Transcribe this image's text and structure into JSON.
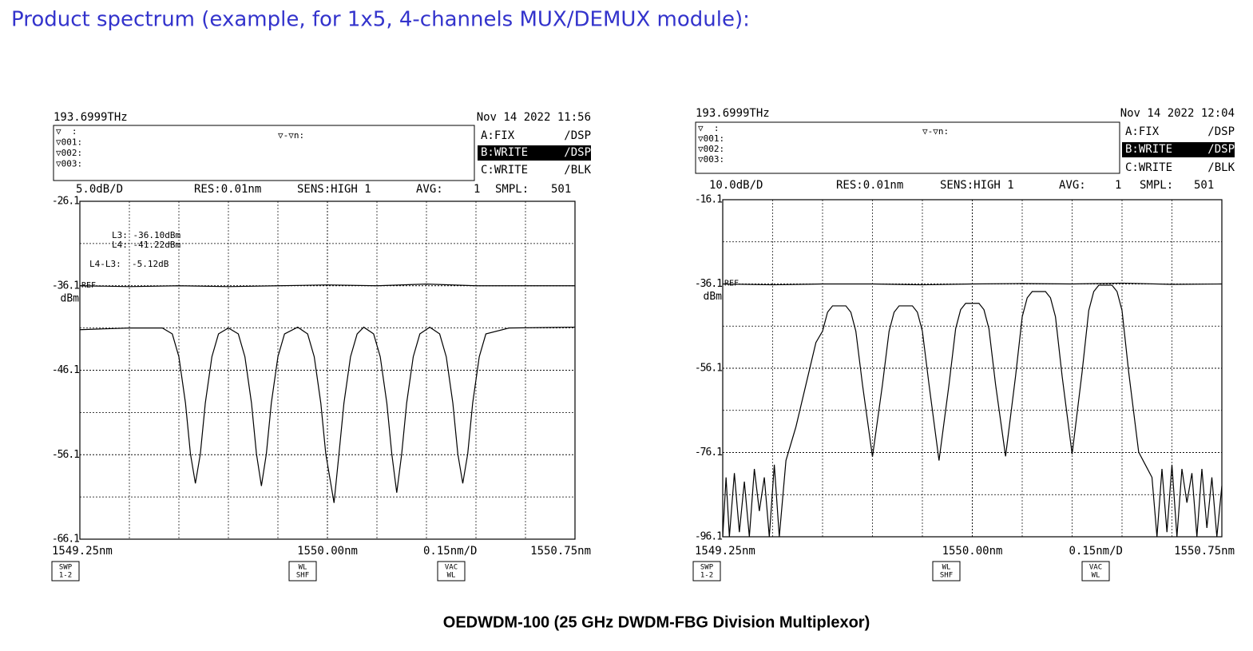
{
  "page_title": "Product spectrum (example, for 1x5, 4-channels MUX/DEMUX module):",
  "caption": "OEDWDM-100 (25 GHz DWDM-FBG Division Multiplexor)",
  "chart_data": [
    {
      "type": "line",
      "frequency": "193.6999THz",
      "timestamp": "Nov 14 2022 11:56",
      "marker_labels": [
        "▽  :",
        "▽001:",
        "▽002:",
        "▽003:"
      ],
      "delta_label": "▽-▽n:",
      "trace_modes": [
        [
          "A:FIX",
          "/DSP"
        ],
        [
          "B:WRITE",
          "/DSP"
        ],
        [
          "C:WRITE",
          "/BLK"
        ]
      ],
      "settings": [
        "5.0dB/D",
        "RES:0.01nm",
        "SENS:HIGH 1",
        "AVG:",
        "1",
        "SMPL:",
        "501"
      ],
      "y_unit": "dBm",
      "ref_label": "REF",
      "x_per_div": "0.15nm/D",
      "buttons": [
        [
          "SWP",
          "1-2"
        ],
        [
          "WL",
          "SHF"
        ],
        [
          "VAC",
          "WL"
        ]
      ],
      "annotations": [
        "L3: -36.10dBm",
        "L4: -41.22dBm",
        "L4-L3:  -5.12dB"
      ],
      "xlim": [
        1549.25,
        1550.75
      ],
      "xticks": [
        {
          "value": 1549.25,
          "label": "1549.25nm"
        },
        {
          "value": 1550.0,
          "label": "1550.00nm"
        },
        {
          "value": 1550.75,
          "label": "1550.75nm"
        }
      ],
      "ylim": [
        -66.1,
        -26.1
      ],
      "yticks": [
        -26.1,
        -36.1,
        -46.1,
        -56.1,
        -66.1
      ],
      "series": [
        {
          "color": "#000000",
          "x": [
            1549.25,
            1549.4,
            1549.55,
            1549.7,
            1549.85,
            1550.0,
            1550.15,
            1550.3,
            1550.45,
            1550.6,
            1550.75
          ],
          "values": [
            -36.1,
            -36.2,
            -36.1,
            -36.2,
            -36.1,
            -36.0,
            -36.1,
            -35.9,
            -36.1,
            -36.1,
            -36.1
          ]
        },
        {
          "color": "#000000",
          "x": [
            1549.25,
            1549.4,
            1549.5,
            1549.53,
            1549.55,
            1549.57,
            1549.585,
            1549.6,
            1549.615,
            1549.63,
            1549.65,
            1549.67,
            1549.7,
            1549.73,
            1549.75,
            1549.77,
            1549.785,
            1549.8,
            1549.815,
            1549.83,
            1549.85,
            1549.87,
            1549.91,
            1549.94,
            1549.96,
            1549.98,
            1549.995,
            1550.02,
            1550.035,
            1550.05,
            1550.07,
            1550.09,
            1550.11,
            1550.14,
            1550.16,
            1550.18,
            1550.195,
            1550.21,
            1550.225,
            1550.24,
            1550.26,
            1550.28,
            1550.31,
            1550.34,
            1550.36,
            1550.38,
            1550.395,
            1550.41,
            1550.425,
            1550.44,
            1550.46,
            1550.48,
            1550.55,
            1550.75
          ],
          "values": [
            -41.3,
            -41.1,
            -41.1,
            -41.8,
            -44.5,
            -50,
            -56,
            -59.5,
            -56,
            -50,
            -44.5,
            -41.8,
            -41.1,
            -41.8,
            -44.5,
            -50,
            -56,
            -59.8,
            -56,
            -50,
            -44.5,
            -41.8,
            -41.0,
            -41.8,
            -44.5,
            -50,
            -56,
            -61.8,
            -56,
            -50,
            -44.5,
            -41.8,
            -41.0,
            -41.8,
            -44.5,
            -50,
            -56,
            -60.6,
            -56,
            -50,
            -44.5,
            -41.8,
            -41.0,
            -41.8,
            -44.5,
            -50,
            -56,
            -59.5,
            -56,
            -50,
            -44.5,
            -41.8,
            -41.1,
            -41.0
          ]
        }
      ]
    },
    {
      "type": "line",
      "frequency": "193.6999THz",
      "timestamp": "Nov 14 2022 12:04",
      "marker_labels": [
        "▽  :",
        "▽001:",
        "▽002:",
        "▽003:"
      ],
      "delta_label": "▽-▽n:",
      "trace_modes": [
        [
          "A:FIX",
          "/DSP"
        ],
        [
          "B:WRITE",
          "/DSP"
        ],
        [
          "C:WRITE",
          "/BLK"
        ]
      ],
      "settings": [
        "10.0dB/D",
        "RES:0.01nm",
        "SENS:HIGH 1",
        "AVG:",
        "1",
        "SMPL:",
        "501"
      ],
      "y_unit": "dBm",
      "ref_label": "REF",
      "x_per_div": "0.15nm/D",
      "buttons": [
        [
          "SWP",
          "1-2"
        ],
        [
          "WL",
          "SHF"
        ],
        [
          "VAC",
          "WL"
        ]
      ],
      "xlim": [
        1549.25,
        1550.75
      ],
      "xticks": [
        {
          "value": 1549.25,
          "label": "1549.25nm"
        },
        {
          "value": 1550.0,
          "label": "1550.00nm"
        },
        {
          "value": 1550.75,
          "label": "1550.75nm"
        }
      ],
      "ylim": [
        -96.1,
        -16.1
      ],
      "yticks": [
        -16.1,
        -36.1,
        -56.1,
        -76.1,
        -96.1
      ],
      "series": [
        {
          "color": "#000000",
          "x": [
            1549.25,
            1549.4,
            1549.55,
            1549.7,
            1549.85,
            1550.0,
            1550.15,
            1550.3,
            1550.45,
            1550.6,
            1550.75
          ],
          "values": [
            -36.1,
            -36.3,
            -36.1,
            -36.1,
            -36.3,
            -36.1,
            -36.0,
            -36.1,
            -35.9,
            -36.2,
            -36.1
          ]
        },
        {
          "color": "#000000",
          "x": [
            1549.25,
            1549.26,
            1549.27,
            1549.285,
            1549.3,
            1549.315,
            1549.33,
            1549.345,
            1549.36,
            1549.375,
            1549.39,
            1549.405,
            1549.42,
            1549.44,
            1549.47,
            1549.5,
            1549.53,
            1549.55,
            1549.565,
            1549.58,
            1549.62,
            1549.635,
            1549.65,
            1549.67,
            1549.7,
            1549.73,
            1549.75,
            1549.765,
            1549.78,
            1549.82,
            1549.835,
            1549.85,
            1549.87,
            1549.9,
            1549.93,
            1549.95,
            1549.965,
            1549.98,
            1550.02,
            1550.035,
            1550.05,
            1550.07,
            1550.1,
            1550.13,
            1550.15,
            1550.165,
            1550.18,
            1550.22,
            1550.235,
            1550.25,
            1550.27,
            1550.3,
            1550.33,
            1550.35,
            1550.365,
            1550.38,
            1550.42,
            1550.435,
            1550.45,
            1550.47,
            1550.5,
            1550.52,
            1550.54,
            1550.555,
            1550.57,
            1550.585,
            1550.6,
            1550.615,
            1550.63,
            1550.645,
            1550.66,
            1550.675,
            1550.69,
            1550.705,
            1550.72,
            1550.735,
            1550.75
          ],
          "values": [
            -96.1,
            -82,
            -96.1,
            -81,
            -95,
            -83,
            -96.1,
            -80,
            -90,
            -82,
            -96.1,
            -79,
            -96.1,
            -78,
            -70,
            -60,
            -50,
            -47.3,
            -42.8,
            -41.3,
            -41.3,
            -42.8,
            -47.3,
            -60,
            -77.1,
            -60,
            -47.3,
            -42.8,
            -41.3,
            -41.3,
            -42.8,
            -47.3,
            -60,
            -78,
            -60,
            -46.7,
            -42.2,
            -40.7,
            -40.7,
            -42.2,
            -46.7,
            -60,
            -77,
            -58,
            -43.9,
            -39.4,
            -37.9,
            -37.9,
            -39.4,
            -43.9,
            -58,
            -76.5,
            -57,
            -42.4,
            -37.9,
            -36.4,
            -36.4,
            -37.9,
            -42.4,
            -57,
            -76,
            -79,
            -82,
            -96.1,
            -80,
            -95,
            -79,
            -96.1,
            -80,
            -88,
            -81,
            -96.1,
            -80,
            -94,
            -82,
            -96.1,
            -84
          ]
        }
      ]
    }
  ]
}
